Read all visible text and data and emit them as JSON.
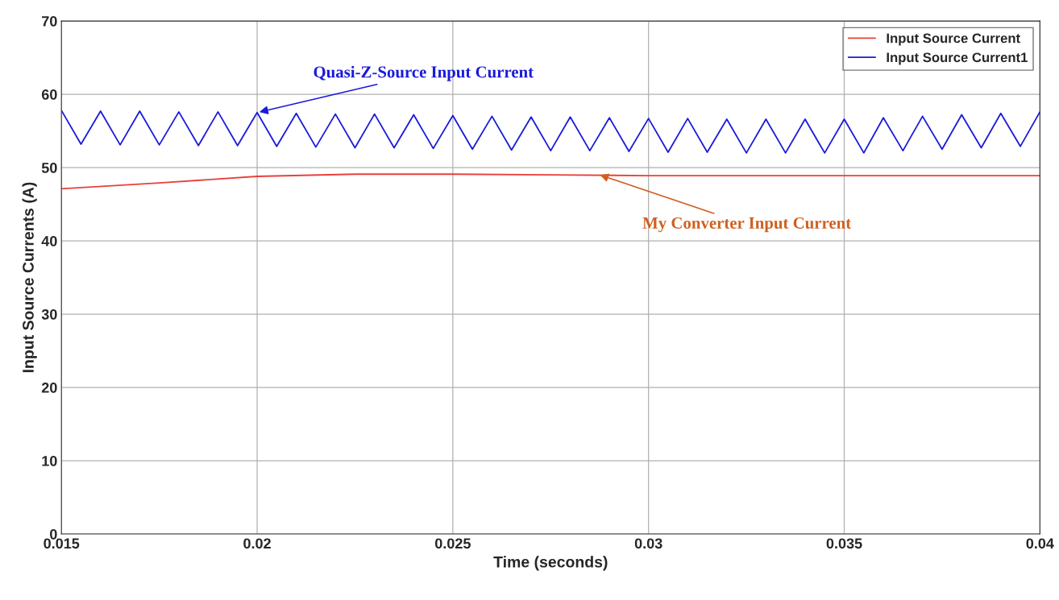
{
  "chart_data": {
    "type": "line",
    "xlabel": "Time (seconds)",
    "ylabel": "Input Source Currents (A)",
    "xlim": [
      0.015,
      0.04
    ],
    "xticks": [
      0.015,
      0.02,
      0.025,
      0.03,
      0.035,
      0.04
    ],
    "ylim": [
      0,
      70
    ],
    "yticks": [
      0,
      10,
      20,
      30,
      40,
      50,
      60,
      70
    ],
    "grid": true,
    "legend": "top right",
    "series": [
      {
        "name": "Input Source Current",
        "color": "#e8403a",
        "x": [
          0.015,
          0.0175,
          0.02,
          0.0225,
          0.025,
          0.0275,
          0.03,
          0.035,
          0.04
        ],
        "values": [
          47.1,
          47.9,
          48.8,
          49.1,
          49.1,
          49.0,
          48.9,
          48.9,
          48.9
        ]
      },
      {
        "name": "Input Source Current1",
        "color": "#1a1adc",
        "x": [
          0.015,
          0.0155,
          0.016,
          0.0165,
          0.017,
          0.0175,
          0.018,
          0.0185,
          0.019,
          0.0195,
          0.02,
          0.0205,
          0.021,
          0.0215,
          0.022,
          0.0225,
          0.023,
          0.0235,
          0.024,
          0.0245,
          0.025,
          0.0255,
          0.026,
          0.0265,
          0.027,
          0.0275,
          0.028,
          0.0285,
          0.029,
          0.0295,
          0.03,
          0.0305,
          0.031,
          0.0315,
          0.032,
          0.0325,
          0.033,
          0.0335,
          0.034,
          0.0345,
          0.035,
          0.0355,
          0.036,
          0.0365,
          0.037,
          0.0375,
          0.038,
          0.0385,
          0.039,
          0.0395,
          0.04
        ],
        "values": [
          57.8,
          53.2,
          57.7,
          53.1,
          57.7,
          53.1,
          57.6,
          53.0,
          57.6,
          53.0,
          57.5,
          52.9,
          57.4,
          52.8,
          57.3,
          52.7,
          57.3,
          52.7,
          57.2,
          52.6,
          57.1,
          52.5,
          57.0,
          52.4,
          56.9,
          52.3,
          56.9,
          52.3,
          56.8,
          52.2,
          56.7,
          52.1,
          56.7,
          52.1,
          56.6,
          52.0,
          56.6,
          52.0,
          56.6,
          52.0,
          56.6,
          52.0,
          56.8,
          52.3,
          57.0,
          52.5,
          57.2,
          52.7,
          57.4,
          52.9,
          57.6
        ]
      }
    ],
    "annotations": [
      {
        "text": "Quasi-Z-Source Input Current",
        "x": 0.02,
        "y": 57.5
      },
      {
        "text": "My Converter Input Current",
        "x": 0.0287,
        "y": 49.1
      }
    ]
  }
}
